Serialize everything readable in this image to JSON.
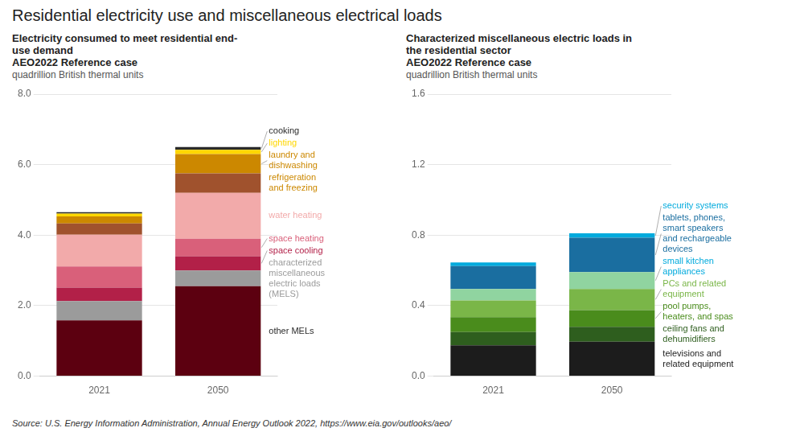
{
  "title": "Residential electricity use and miscellaneous electrical loads",
  "source": "Source: U.S. Energy Information Administration, Annual Energy Outlook 2022, https://www.eia.gov/outlooks/aeo/",
  "chart_data": [
    {
      "type": "bar",
      "stacked": true,
      "grid": true,
      "subtitle": [
        "Electricity consumed to meet residential end-",
        "use demand",
        "AEO2022 Reference case",
        "quadrillion British thermal units"
      ],
      "categories": [
        "2021",
        "2050"
      ],
      "ylim": [
        0,
        8.0
      ],
      "yticks": [
        {
          "value": 0,
          "label": "0.0"
        },
        {
          "value": 2,
          "label": "2.0"
        },
        {
          "value": 4,
          "label": "4.0"
        },
        {
          "value": 6,
          "label": "6.0"
        },
        {
          "value": 8,
          "label": "8.0"
        }
      ],
      "series": [
        {
          "color": "#5C0010",
          "values": [
            1.58,
            2.55
          ]
        },
        {
          "color": "#9B9B9B",
          "values": [
            0.55,
            0.45
          ]
        },
        {
          "color": "#B22048",
          "values": [
            0.38,
            0.4
          ]
        },
        {
          "color": "#D9607A",
          "values": [
            0.6,
            0.5
          ]
        },
        {
          "color": "#F2AAAA",
          "values": [
            0.9,
            1.3
          ]
        },
        {
          "color": "#A0522D",
          "values": [
            0.32,
            0.55
          ]
        },
        {
          "color": "#CC8800",
          "values": [
            0.2,
            0.55
          ]
        },
        {
          "color": "#FFD700",
          "values": [
            0.08,
            0.12
          ]
        },
        {
          "color": "#2A2A2A",
          "values": [
            0.04,
            0.08
          ]
        }
      ],
      "annotations": [
        {
          "text": "other MELs",
          "color": "#2A2A2A"
        },
        {
          "text": "characterized\nmiscellaneous\nelectric loads\n(MELS)",
          "color": "#9B9B9B"
        },
        {
          "text": "space cooling",
          "color": "#B22048"
        },
        {
          "text": "space heating",
          "color": "#D9607A"
        },
        {
          "text": "water heating",
          "color": "#F2AAAA"
        },
        {
          "text": "refrigeration\nand freezing",
          "color": "#CC8800"
        },
        {
          "text": "laundry and\ndishwashing",
          "color": "#CC8800"
        },
        {
          "text": "lighting",
          "color": "#FFD700"
        },
        {
          "text": "cooking",
          "color": "#2A2A2A"
        }
      ]
    },
    {
      "type": "bar",
      "stacked": true,
      "grid": true,
      "subtitle": [
        "Characterized miscellaneous electric loads in",
        "the residential sector",
        "AEO2022 Reference case",
        "quadrillion British thermal units"
      ],
      "categories": [
        "2021",
        "2050"
      ],
      "ylim": [
        0,
        1.6
      ],
      "yticks": [
        {
          "value": 0,
          "label": "0.0"
        },
        0.4,
        0.8,
        1.2,
        1.6
      ],
      "series": [
        {
          "color": "#1C1C1C",
          "values": [
            0.175,
            0.195
          ]
        },
        {
          "color": "#2E5E1E",
          "values": [
            0.075,
            0.085
          ]
        },
        {
          "color": "#4A8C1C",
          "values": [
            0.085,
            0.095
          ]
        },
        {
          "color": "#7AB648",
          "values": [
            0.095,
            0.12
          ]
        },
        {
          "color": "#90D4A0",
          "values": [
            0.065,
            0.095
          ]
        },
        {
          "color": "#1A6EA0",
          "values": [
            0.13,
            0.195
          ]
        },
        {
          "color": "#00AADD",
          "values": [
            0.02,
            0.025
          ]
        }
      ],
      "annotations": [
        {
          "text": "televisions and\nrelated equipment",
          "color": "#1C1C1C"
        },
        {
          "text": "ceiling fans and\ndehumidifiers",
          "color": "#2E5E1E"
        },
        {
          "text": "pool pumps,\nheaters, and spas",
          "color": "#4A8C1C"
        },
        {
          "text": "PCs and related\nequipment",
          "color": "#7AB648"
        },
        {
          "text": "small kitchen\nappliances",
          "color": "#00AADD"
        },
        {
          "text": "tablets, phones,\nsmart speakers\nand rechargeable\ndevices",
          "color": "#1A6EA0"
        },
        {
          "text": "security systems",
          "color": "#00AADD"
        }
      ]
    }
  ]
}
